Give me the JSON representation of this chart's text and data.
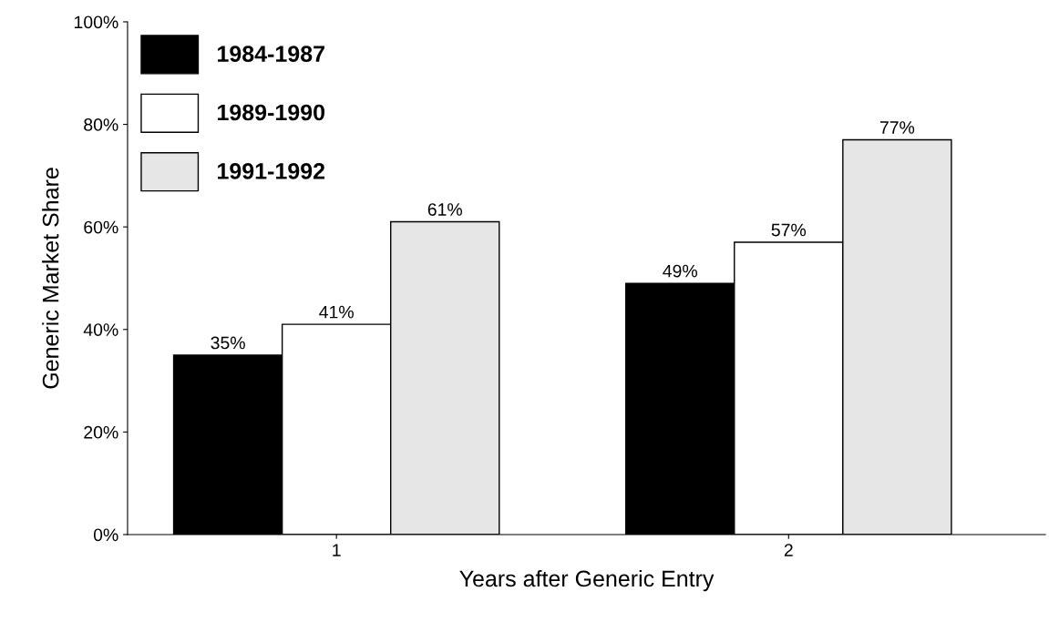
{
  "chart_data": {
    "type": "bar",
    "xlabel": "Years after Generic Entry",
    "ylabel": "Generic Market Share",
    "categories": [
      "1",
      "2"
    ],
    "series": [
      {
        "name": "1984-1987",
        "color": "#000000",
        "values": [
          35,
          49
        ],
        "value_labels": [
          "35%",
          "49%"
        ]
      },
      {
        "name": "1989-1990",
        "color": "#ffffff",
        "values": [
          41,
          57
        ],
        "value_labels": [
          "41%",
          "57%"
        ]
      },
      {
        "name": "1991-1992",
        "color": "#e6e6e6",
        "values": [
          61,
          77
        ],
        "value_labels": [
          "61%",
          "77%"
        ]
      }
    ],
    "ylim": [
      0,
      100
    ],
    "yticks": [
      {
        "value": 0,
        "label": "0%"
      },
      {
        "value": 20,
        "label": "20%"
      },
      {
        "value": 40,
        "label": "40%"
      },
      {
        "value": 60,
        "label": "60%"
      },
      {
        "value": 80,
        "label": "80%"
      },
      {
        "value": 100,
        "label": "100%"
      }
    ],
    "legend": "top left",
    "grid": false
  }
}
